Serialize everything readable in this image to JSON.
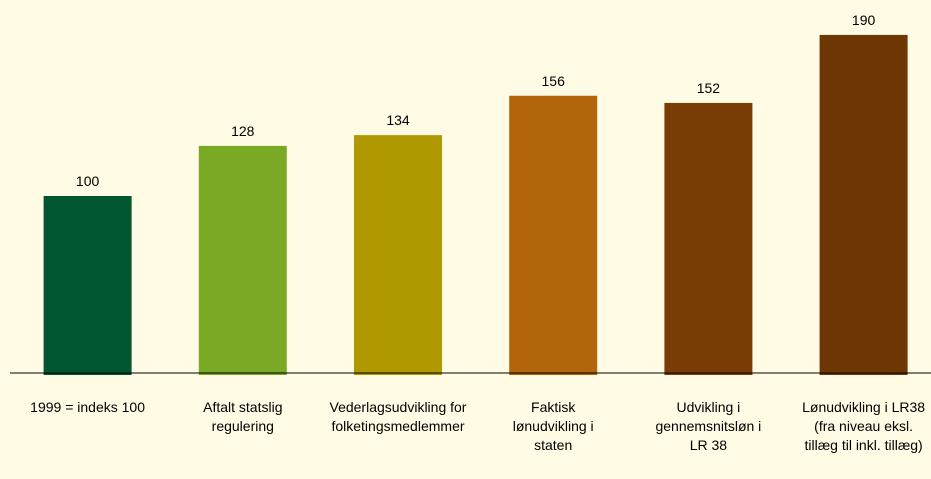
{
  "chart_data": {
    "type": "bar",
    "categories": [
      "1999 = indeks 100",
      "Aftalt statslig regulering",
      "Vederlagsudvikling for folketingsmedlemmer",
      "Faktisk lønudvikling i staten",
      "Udvikling i gennemsnitsløn i LR 38",
      "Lønudvikling i LR38 (fra niveau eksl. tillæg til inkl. tillæg)"
    ],
    "values": [
      100,
      128,
      134,
      156,
      152,
      190
    ],
    "colors": [
      "#00562E",
      "#7AAA25",
      "#B09800",
      "#B2650A",
      "#7A3C05",
      "#6E3603"
    ],
    "ylim": [
      0,
      200
    ]
  }
}
